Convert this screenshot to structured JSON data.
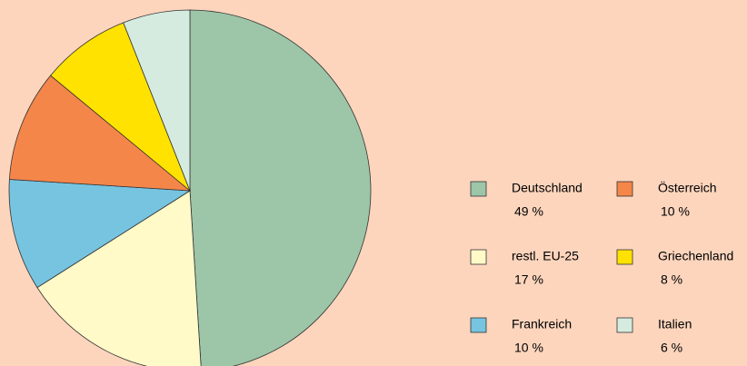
{
  "chart_data": {
    "type": "pie",
    "categories": [
      "Deutschland",
      "restl. EU-25",
      "Frankreich",
      "Österreich",
      "Griechenland",
      "Italien"
    ],
    "values": [
      49,
      17,
      10,
      10,
      8,
      6
    ],
    "value_labels": [
      "49 %",
      "17 %",
      "10 %",
      "10 %",
      "8 %",
      "6 %"
    ],
    "colors": [
      "#9dc5a8",
      "#fffac8",
      "#76c4e0",
      "#f5864a",
      "#ffe200",
      "#d5ebdf"
    ]
  }
}
